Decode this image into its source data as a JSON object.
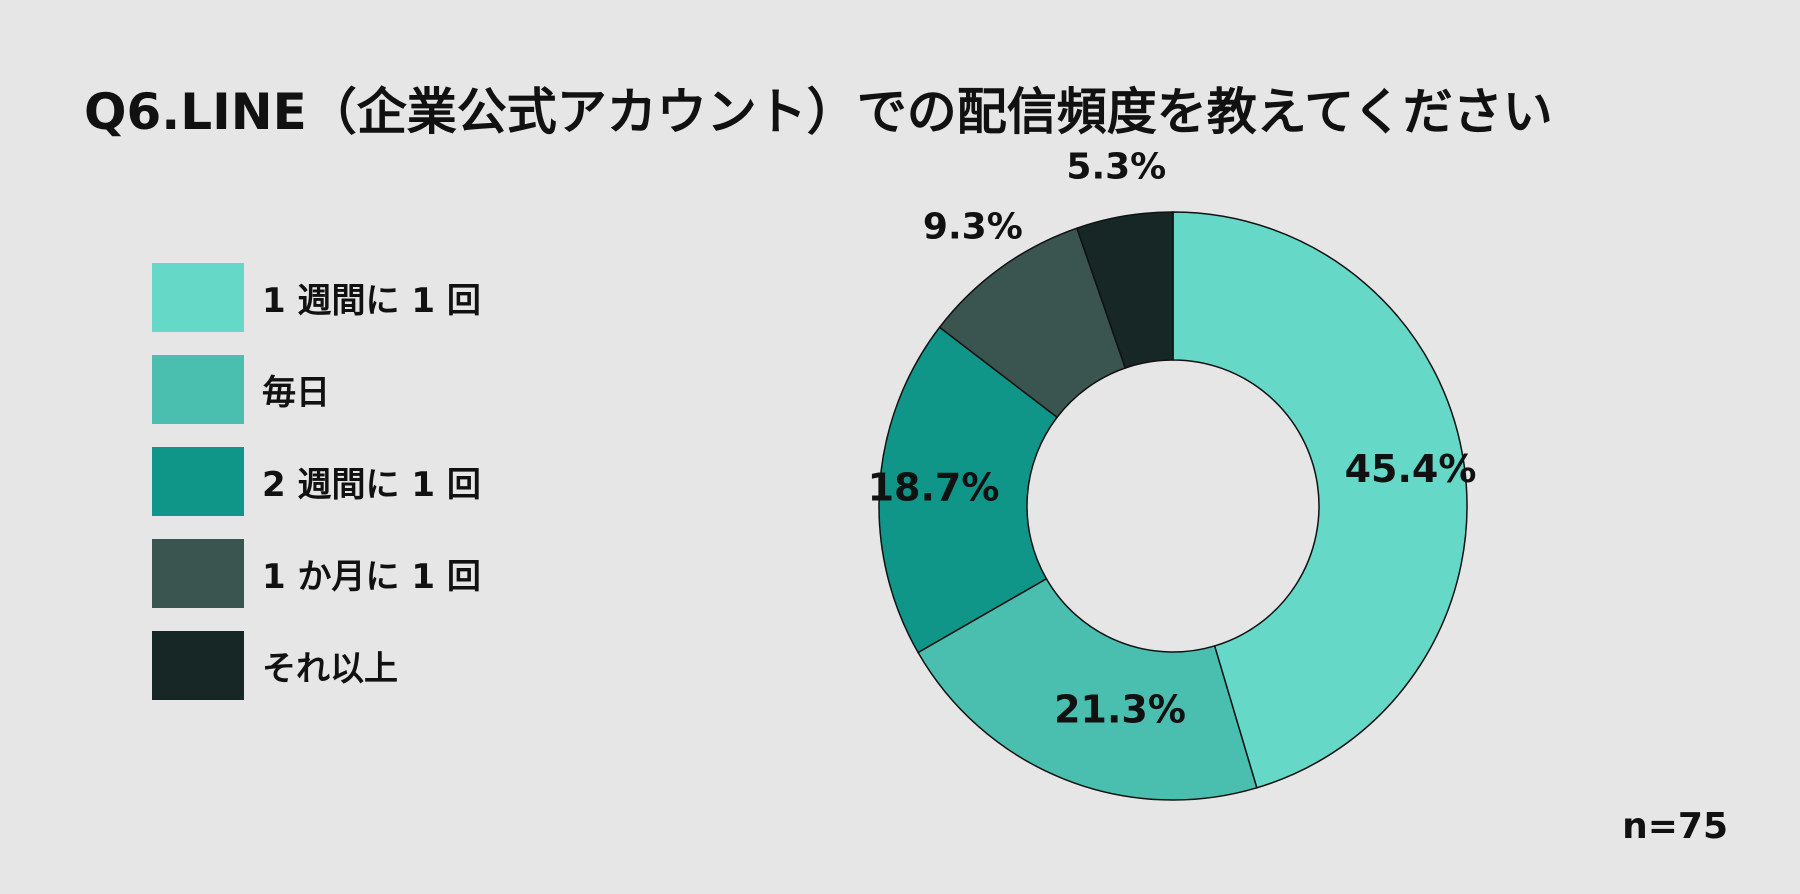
{
  "title": "Q6.LINE（企業公式アカウント）での配信頻度を教えてください",
  "sample_size": "n=75",
  "chart_data": {
    "type": "pie",
    "categories": [
      "1週間に1回",
      "毎日",
      "2週間に1回",
      "1か月に1回",
      "それ以上"
    ],
    "values": [
      45.4,
      21.3,
      18.7,
      9.3,
      5.3
    ],
    "data_labels": [
      "45.4%",
      "21.3%",
      "18.7%",
      "9.3%",
      "5.3%"
    ],
    "colors": [
      "#65d8c8",
      "#4abfb0",
      "#109688",
      "#3a5550",
      "#172725"
    ],
    "legend_position": "left",
    "donut": true
  },
  "legend": {
    "items": [
      {
        "label": "1 週間に 1 回",
        "color": "#65d8c8"
      },
      {
        "label": "毎日",
        "color": "#4abfb0"
      },
      {
        "label": "2 週間に 1 回",
        "color": "#109688"
      },
      {
        "label": "1 か月に 1 回",
        "color": "#3a5550"
      },
      {
        "label": "それ以上",
        "color": "#172725"
      }
    ]
  }
}
